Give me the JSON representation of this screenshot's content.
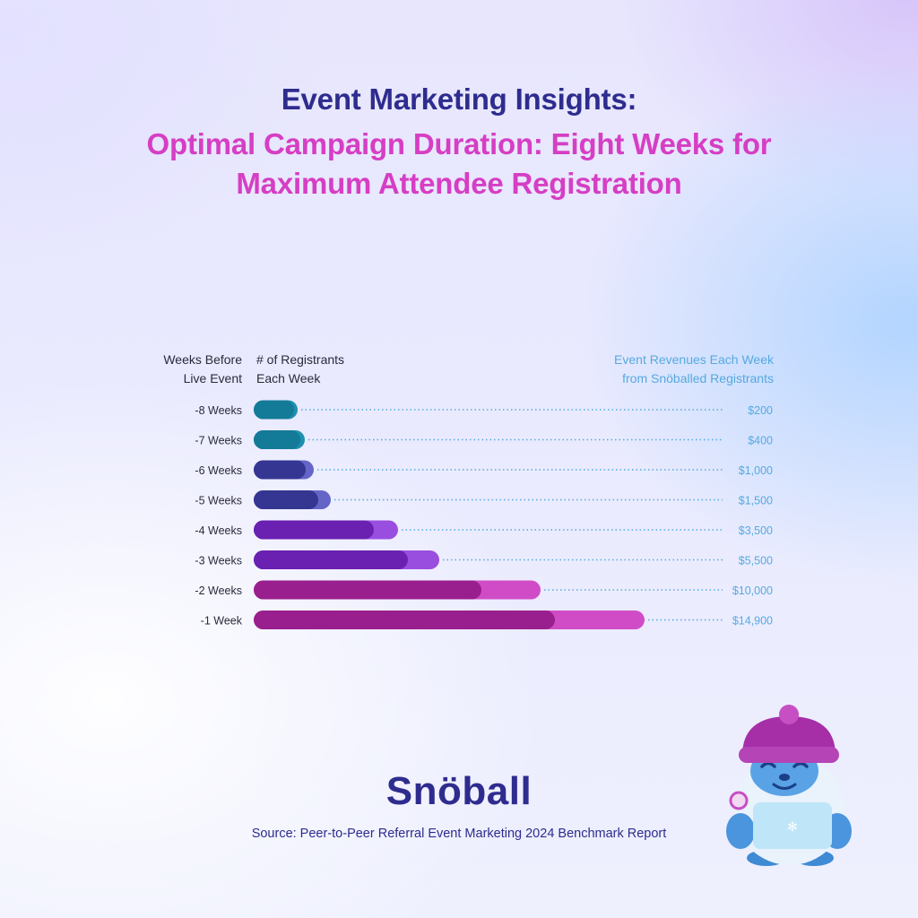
{
  "title_line1": "Event Marketing Insights:",
  "title_line2": "Optimal Campaign Duration: Eight Weeks for",
  "title_line3": "Maximum Attendee Registration",
  "column_headers": {
    "weeks": [
      "Weeks Before",
      "Live Event"
    ],
    "registrants": [
      "# of Registrants",
      "Each Week"
    ],
    "revenue": [
      "Event Revenues Each Week",
      "from Snöballed Registrants"
    ]
  },
  "brand": "Snöball",
  "source": "Source: Peer-to-Peer Referral Event Marketing 2024 Benchmark Report",
  "colors": {
    "teal": "#137a98",
    "navy": "#353592",
    "violet": "#6a20b0",
    "magenta": "#9a1f8e",
    "teal_light": "#1f8fb0",
    "navy_light": "#6565c8",
    "violet_light": "#9a4ee0",
    "magenta_light": "#d04cc6",
    "revenue_text": "#56a9e0"
  },
  "chart_data": {
    "type": "bar",
    "orientation": "horizontal",
    "categories": [
      "-8 Weeks",
      "-7 Weeks",
      "-6 Weeks",
      "-5 Weeks",
      "-4 Weeks",
      "-3 Weeks",
      "-2 Weeks",
      "-1 Week"
    ],
    "series": [
      {
        "values": [
          49,
          57,
          67,
          86,
          161,
          207,
          320,
          436
        ]
      },
      {
        "values": [
          45,
          52,
          58,
          72,
          134,
          172,
          254,
          336
        ]
      }
    ],
    "revenue_labels": [
      "$200",
      "$400",
      "$1,000",
      "$1,500",
      "$3,500",
      "$5,500",
      "$10,000",
      "$14,900"
    ],
    "color_groups": [
      "teal",
      "teal",
      "navy",
      "navy",
      "violet",
      "violet",
      "magenta",
      "magenta"
    ],
    "xlim": [
      0,
      436
    ],
    "grid": false
  }
}
